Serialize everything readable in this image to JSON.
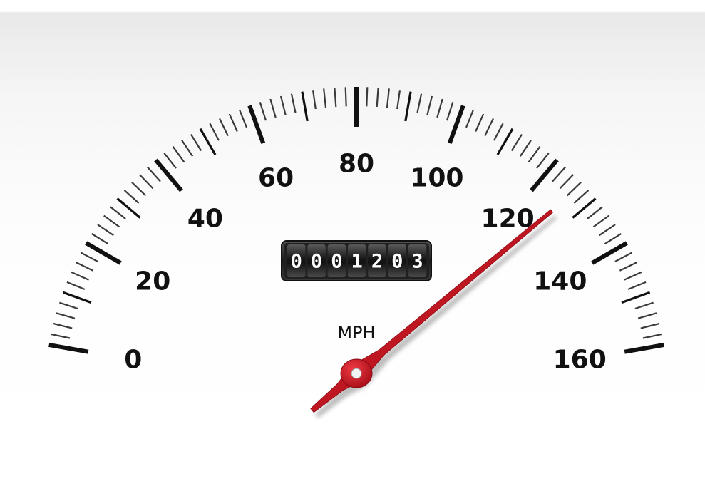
{
  "gauge": {
    "unit": "MPH",
    "min": 0,
    "max": 160,
    "major_step": 20,
    "minor_per_major": 10,
    "labels": [
      "0",
      "20",
      "40",
      "60",
      "80",
      "100",
      "120",
      "140",
      "160"
    ],
    "needle_value": 127,
    "odometer": "0001203",
    "colors": {
      "needle": "#c1121f",
      "ticks": "#111111",
      "odometer_bg": "#2a2a2a",
      "odometer_digit": "#ffffff"
    }
  }
}
